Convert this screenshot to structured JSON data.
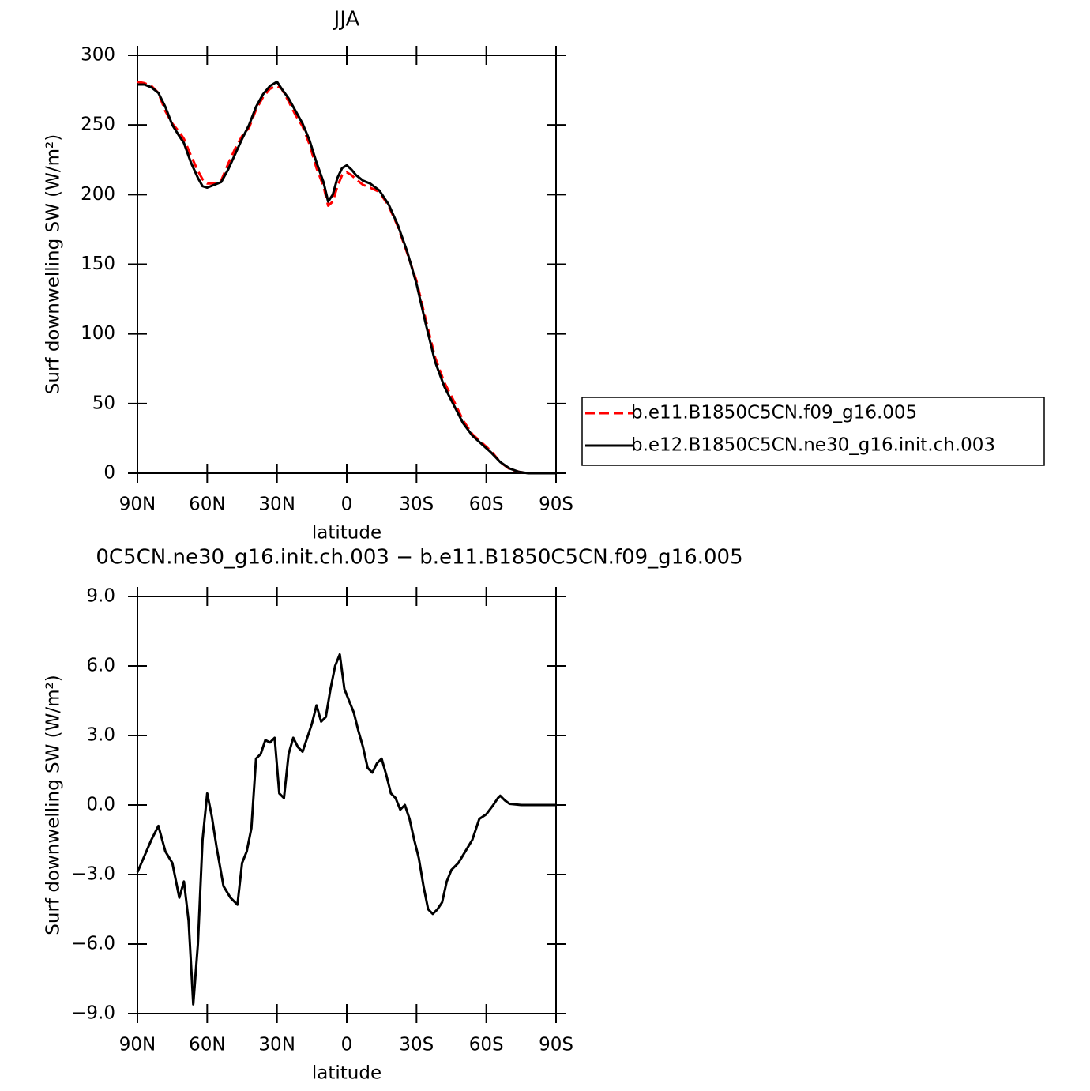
{
  "chart_data": [
    {
      "type": "line",
      "title": "JJA",
      "xlabel": "latitude",
      "ylabel": "Surf downwelling SW (W/m²)",
      "x": [
        90,
        87,
        84,
        81,
        78,
        75,
        72,
        70,
        67,
        64,
        62,
        60,
        57,
        54,
        51,
        48,
        45,
        42,
        39,
        36,
        33,
        30,
        28,
        25,
        22,
        19,
        16,
        13,
        10,
        8,
        6,
        4,
        2,
        0,
        -2,
        -4,
        -7,
        -10,
        -14,
        -18,
        -22,
        -26,
        -30,
        -34,
        -38,
        -42,
        -46,
        -50,
        -54,
        -58,
        -62,
        -66,
        -70,
        -74,
        -78,
        -82,
        -86,
        -90
      ],
      "xlim": [
        90,
        -90
      ],
      "xticks": [
        {
          "value": 90,
          "label": "90N"
        },
        {
          "value": 60,
          "label": "60N"
        },
        {
          "value": 30,
          "label": "30N"
        },
        0,
        {
          "value": -30,
          "label": "30S"
        },
        {
          "value": -60,
          "label": "60S"
        },
        {
          "value": -90,
          "label": "90S"
        }
      ],
      "ylim": [
        0,
        300
      ],
      "yticks": [
        0,
        50,
        100,
        150,
        200,
        250,
        300
      ],
      "legend": "right",
      "series": [
        {
          "name": "b.e11.B1850C5CN.f09_g16.005",
          "color": "#ff0000",
          "style": "dashed",
          "values": [
            281,
            280,
            278,
            273,
            260,
            251,
            245,
            240,
            228,
            217,
            211,
            208,
            208,
            210,
            222,
            233,
            242,
            248,
            261,
            270,
            276,
            278,
            276,
            267,
            257,
            249,
            236,
            219,
            206,
            192,
            195,
            206,
            214,
            216,
            214,
            211,
            207,
            205,
            202,
            192,
            177,
            158,
            138,
            110,
            83,
            65,
            52,
            38,
            28,
            22,
            16,
            8,
            3,
            1,
            0,
            0,
            0,
            0
          ]
        },
        {
          "name": "b.e12.B1850C5CN.ne30_g16.init.ch.003",
          "color": "#000000",
          "style": "solid",
          "values": [
            279,
            279,
            277,
            273,
            263,
            250,
            242,
            237,
            223,
            212,
            206,
            205,
            207,
            209,
            218,
            229,
            240,
            250,
            263,
            272,
            278,
            281,
            276,
            269,
            260,
            251,
            239,
            223,
            209,
            195,
            200,
            212,
            219,
            221,
            218,
            214,
            210,
            208,
            203,
            193,
            178,
            159,
            136,
            107,
            80,
            62,
            49,
            36,
            27,
            21,
            15,
            8,
            3.4,
            1,
            0,
            0,
            0,
            0
          ]
        }
      ]
    },
    {
      "type": "line",
      "title": "0C5CN.ne30_g16.init.ch.003 − b.e11.B1850C5CN.f09_g16.005",
      "xlabel": "latitude",
      "ylabel": "Surf downwelling SW (W/m²)",
      "x": [
        90,
        87,
        84,
        81,
        78,
        75,
        72,
        70,
        68,
        66,
        64,
        62,
        60,
        58,
        56,
        53,
        50,
        47,
        45,
        43,
        41,
        39,
        37,
        35,
        33,
        31,
        29,
        27,
        25,
        23,
        21,
        19,
        17,
        15,
        13,
        11,
        9,
        7,
        5,
        3,
        1,
        -1,
        -3,
        -5,
        -7,
        -9,
        -11,
        -13,
        -15,
        -17,
        -19,
        -21,
        -23,
        -25,
        -27,
        -29,
        -31,
        -33,
        -35,
        -37,
        -39,
        -41,
        -43,
        -45,
        -48,
        -51,
        -54,
        -57,
        -60,
        -63,
        -65,
        -66,
        -68,
        -70,
        -75,
        -90
      ],
      "xlim": [
        90,
        -90
      ],
      "xticks": [
        {
          "value": 90,
          "label": "90N"
        },
        {
          "value": 60,
          "label": "60N"
        },
        {
          "value": 30,
          "label": "30N"
        },
        0,
        {
          "value": -30,
          "label": "30S"
        },
        {
          "value": -60,
          "label": "60S"
        },
        {
          "value": -90,
          "label": "90S"
        }
      ],
      "ylim": [
        -9,
        9
      ],
      "yticks": [
        {
          "value": -9,
          "label": "−9.0"
        },
        {
          "value": -6,
          "label": "−6.0"
        },
        {
          "value": -3,
          "label": "−3.0"
        },
        {
          "value": 0,
          "label": "0.0"
        },
        {
          "value": 3,
          "label": "3.0"
        },
        {
          "value": 6,
          "label": "6.0"
        },
        {
          "value": 9,
          "label": "9.0"
        }
      ],
      "series": [
        {
          "color": "#000000",
          "style": "solid",
          "values": [
            -2.9,
            -2.2,
            -1.5,
            -0.9,
            -2.0,
            -2.5,
            -4.0,
            -3.3,
            -5.0,
            -8.6,
            -6.0,
            -1.5,
            0.5,
            -0.5,
            -1.8,
            -3.5,
            -4.0,
            -4.3,
            -2.5,
            -2.0,
            -1.0,
            2.0,
            2.2,
            2.8,
            2.7,
            2.9,
            0.5,
            0.3,
            2.2,
            2.9,
            2.5,
            2.3,
            2.9,
            3.5,
            4.3,
            3.6,
            3.8,
            5.0,
            6.0,
            6.5,
            5.0,
            4.5,
            4.0,
            3.2,
            2.5,
            1.6,
            1.4,
            1.8,
            2.0,
            1.3,
            0.5,
            0.3,
            -0.2,
            0.0,
            -0.6,
            -1.5,
            -2.3,
            -3.5,
            -4.5,
            -4.7,
            -4.5,
            -4.2,
            -3.3,
            -2.8,
            -2.5,
            -2.0,
            -1.5,
            -0.6,
            -0.4,
            0.0,
            0.3,
            0.4,
            0.2,
            0.05,
            0.0,
            0.0
          ]
        }
      ]
    }
  ]
}
